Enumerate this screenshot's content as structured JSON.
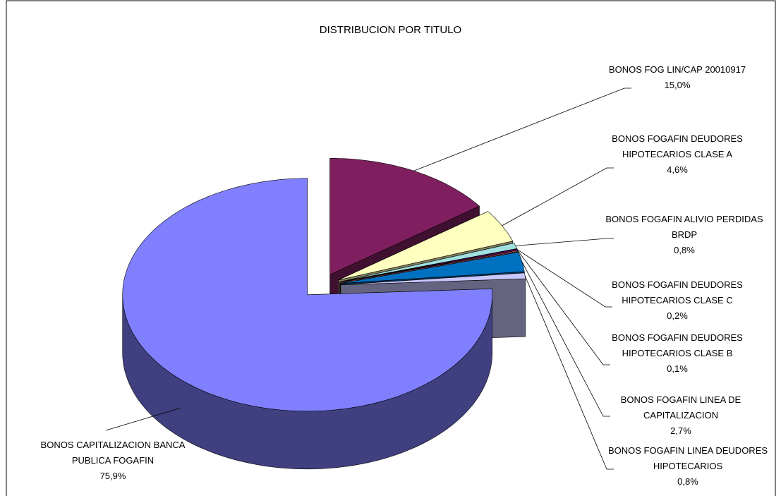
{
  "chart_data": {
    "type": "pie3d",
    "title": "DISTRIBUCION POR TITULO",
    "categories": [
      "BONOS FOG LIN/CAP 20010917",
      "BONOS FOGAFIN DEUDORES HIPOTECARIOS CLASE A",
      "BONOS FOGAFIN ALIVIO PERDIDAS BRDP",
      "BONOS FOGAFIN DEUDORES HIPOTECARIOS CLASE C",
      "BONOS FOGAFIN DEUDORES HIPOTECARIOS CLASE B",
      "BONOS FOGAFIN LINEA DE CAPITALIZACION",
      "BONOS FOGAFIN LINEA DEUDORES HIPOTECARIOS",
      "BONOS CAPITALIZACION BANCA PUBLICA FOGAFIN"
    ],
    "values": [
      15.0,
      4.6,
      0.8,
      0.2,
      0.1,
      2.7,
      0.8,
      75.9
    ],
    "value_labels": [
      "15,0%",
      "4,6%",
      "0,8%",
      "0,2%",
      "0,1%",
      "2,7%",
      "0,8%",
      "75,9%"
    ],
    "colors": [
      "#7f1f5f",
      "#ffffc0",
      "#a0e0e0",
      "#600060",
      "#ff8080",
      "#0070c0",
      "#c8c8ff",
      "#8080ff"
    ]
  }
}
